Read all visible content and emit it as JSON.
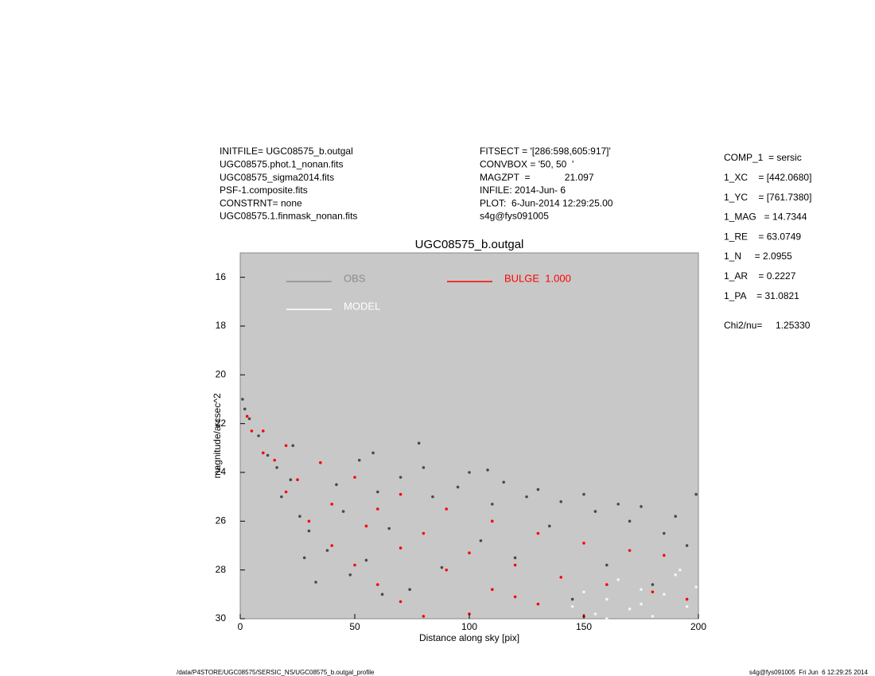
{
  "header": {
    "left": [
      "INITFILE= UGC08575_b.outgal",
      "UGC08575.phot.1_nonan.fits",
      "UGC08575_sigma2014.fits",
      "PSF-1.composite.fits",
      "CONSTRNT= none",
      "UGC08575.1.finmask_nonan.fits"
    ],
    "middle": [
      "FITSECT = '[286:598,605:917]'",
      "CONVBOX = '50, 50  '",
      "MAGZPT  =             21.097",
      "INFILE: 2014-Jun- 6",
      "PLOT:  6-Jun-2014 12:29:25.00",
      "s4g@fys091005"
    ],
    "parameters": [
      "COMP_1  = sersic",
      "1_XC    = [442.0680]",
      "1_YC    = [761.7380]",
      "1_MAG   = 14.7344",
      "1_RE    = 63.0749",
      "1_N     = 2.0955",
      "1_AR    = 0.2227",
      "1_PA    = 31.0821"
    ],
    "chi2": "Chi2/nu=     1.25330"
  },
  "footer": {
    "left": "/data/P4STORE/UGC08575/SERSIC_NS/UGC08575_b.outgal_profile",
    "right": "s4g@fys091005  Fri Jun  6 12:29:25 2014"
  },
  "chart_data": {
    "type": "scatter",
    "title": "UGC08575_b.outgal",
    "x_label": "Distance along sky [pix]",
    "y_label": "magnitude/arcsec^2",
    "xlim": [
      0,
      200
    ],
    "xticks": [
      0,
      50,
      100,
      150,
      200
    ],
    "ylim": [
      30,
      15
    ],
    "yticks": [
      16,
      18,
      20,
      22,
      24,
      26,
      28,
      30
    ],
    "background": "#c8c8c8",
    "series": [
      {
        "name": "OBS",
        "color": "#8c8c8c",
        "marker_color": "#4a4a4a",
        "x": [
          1,
          2,
          4,
          8,
          12,
          16,
          18,
          22,
          26,
          28,
          30,
          33,
          38,
          42,
          45,
          48,
          52,
          55,
          60,
          62,
          65,
          70,
          74,
          80,
          84,
          88,
          95,
          100,
          105,
          110,
          115,
          120,
          125,
          130,
          135,
          140,
          145,
          150,
          155,
          160,
          165,
          170,
          175,
          180,
          185,
          190,
          195,
          199,
          23,
          58,
          78,
          108
        ],
        "values": [
          21.0,
          21.4,
          21.8,
          22.5,
          23.3,
          23.8,
          25.0,
          24.3,
          25.8,
          27.5,
          26.4,
          28.5,
          27.2,
          24.5,
          25.6,
          28.2,
          23.5,
          27.6,
          24.8,
          29.0,
          26.3,
          24.2,
          28.8,
          23.8,
          25.0,
          27.9,
          24.6,
          24.0,
          26.8,
          25.3,
          24.4,
          27.5,
          25.0,
          24.7,
          26.2,
          25.2,
          29.2,
          24.9,
          25.6,
          27.8,
          25.3,
          26.0,
          25.4,
          28.6,
          26.5,
          25.8,
          27.0,
          24.9,
          22.9,
          23.2,
          22.8,
          23.9
        ]
      },
      {
        "name": "MODEL",
        "color": "#ffffff",
        "marker_color": "#f4f4f4",
        "x": [
          145,
          150,
          155,
          160,
          165,
          170,
          175,
          180,
          185,
          190,
          195,
          199,
          160,
          175,
          192
        ],
        "values": [
          29.5,
          28.9,
          29.8,
          29.2,
          28.4,
          29.6,
          28.8,
          29.9,
          29.0,
          28.2,
          29.5,
          28.7,
          30.0,
          29.4,
          28.0
        ]
      },
      {
        "name": "BULGE  1.000",
        "color": "#ff0000",
        "marker_color": "#ff0000",
        "x": [
          3,
          10,
          20,
          35,
          50,
          70,
          90,
          110,
          130,
          150,
          170,
          185,
          5,
          10,
          20,
          30,
          40,
          50,
          60,
          70,
          80,
          15,
          25,
          40,
          55,
          70,
          90,
          110,
          130,
          150,
          60,
          80,
          100,
          120,
          140,
          160,
          180,
          195,
          100,
          120
        ],
        "values": [
          21.7,
          22.3,
          22.9,
          23.6,
          24.2,
          24.9,
          25.5,
          26.0,
          26.5,
          26.9,
          27.2,
          27.4,
          22.3,
          23.2,
          24.8,
          26.0,
          27.0,
          27.8,
          28.6,
          29.3,
          29.9,
          23.5,
          24.3,
          25.3,
          26.2,
          27.1,
          28.0,
          28.8,
          29.4,
          29.9,
          25.5,
          26.5,
          27.3,
          27.8,
          28.3,
          28.6,
          28.9,
          29.2,
          29.8,
          29.1
        ]
      }
    ]
  }
}
